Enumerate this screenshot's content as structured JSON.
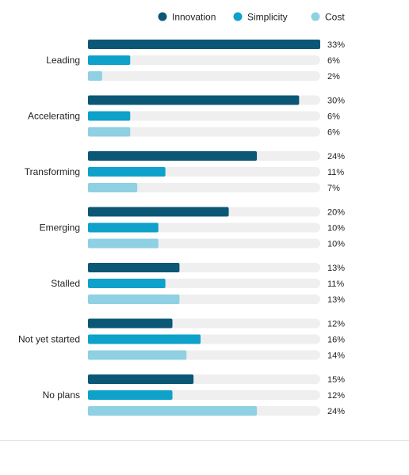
{
  "chart_data": {
    "type": "bar",
    "orientation": "horizontal",
    "categories": [
      "Leading",
      "Accelerating",
      "Transforming",
      "Emerging",
      "Stalled",
      "Not yet started",
      "No plans"
    ],
    "series": [
      {
        "name": "Innovation",
        "values": [
          33,
          30,
          24,
          20,
          13,
          12,
          15
        ],
        "color": "#0b5775"
      },
      {
        "name": "Simplicity",
        "values": [
          6,
          6,
          11,
          10,
          11,
          16,
          12
        ],
        "color": "#0ea1c9"
      },
      {
        "name": "Cost",
        "values": [
          2,
          6,
          7,
          10,
          13,
          14,
          24
        ],
        "color": "#8fd0e3"
      }
    ],
    "value_suffix": "%",
    "xlim": [
      0,
      33
    ],
    "track_color": "#efefef",
    "legend_position": "top-right",
    "grid": false,
    "title": "",
    "xlabel": "",
    "ylabel": ""
  }
}
